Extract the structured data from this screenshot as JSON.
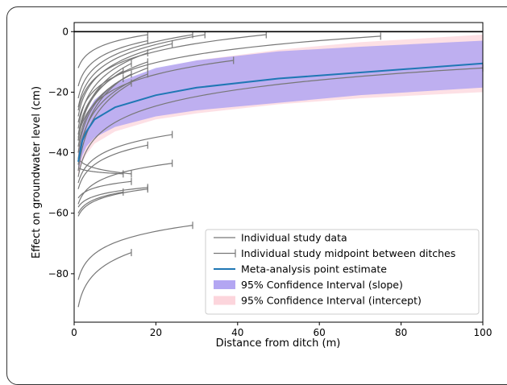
{
  "chart_data": {
    "type": "line",
    "title": "",
    "xlabel": "Distance from ditch (m)",
    "ylabel": "Effect on groundwater level (cm)",
    "xlim": [
      0,
      100
    ],
    "ylim": [
      -96,
      3
    ],
    "x_ticks": [
      0,
      20,
      40,
      60,
      80,
      100
    ],
    "y_ticks": [
      0,
      -20,
      -40,
      -60,
      -80
    ],
    "grid": false,
    "legend_position": "lower-right",
    "legend": [
      {
        "label": "Individual study data",
        "kind": "line",
        "color": "#777777"
      },
      {
        "label": "Individual study midpoint between ditches",
        "kind": "errorbar",
        "color": "#777777"
      },
      {
        "label": "Meta-analysis point estimate",
        "kind": "line",
        "color": "#1f77b4"
      },
      {
        "label": "95% Confidence Interval (slope)",
        "kind": "patch",
        "color": "#b3a6f2"
      },
      {
        "label": "95% Confidence Interval (intercept)",
        "kind": "patch",
        "color": "#fcd5dc"
      }
    ],
    "reference_line_y": 0,
    "meta_estimate": {
      "x": [
        1,
        2,
        3,
        5,
        10,
        20,
        30,
        50,
        70,
        100
      ],
      "y": [
        -43,
        -36,
        -33,
        -29,
        -25,
        -21,
        -18.5,
        -15.5,
        -13.5,
        -10.5
      ]
    },
    "ci_slope": {
      "x": [
        1,
        2,
        3,
        5,
        10,
        20,
        30,
        50,
        70,
        100
      ],
      "upper": [
        -40,
        -31,
        -27,
        -22.5,
        -17,
        -12,
        -9.5,
        -6.5,
        -5,
        -3
      ],
      "lower": [
        -46,
        -41,
        -38,
        -35,
        -31.5,
        -28,
        -26,
        -23.5,
        -21,
        -18.5
      ]
    },
    "ci_intercept": {
      "x": [
        1,
        2,
        3,
        5,
        10,
        20,
        30,
        50,
        70,
        100
      ],
      "upper": [
        -38,
        -31,
        -27,
        -23,
        -17.5,
        -12.5,
        -9.5,
        -6,
        -3.5,
        -1
      ],
      "lower": [
        -48,
        -43,
        -40.5,
        -37,
        -33,
        -29,
        -27,
        -24,
        -22,
        -20
      ]
    },
    "studies": [
      {
        "y1": -12,
        "x_end": 18,
        "y_end": -1
      },
      {
        "y1": -18,
        "x_end": 18,
        "y_end": -3
      },
      {
        "y1": -22,
        "x_end": 29,
        "y_end": -1
      },
      {
        "y1": -25,
        "x_end": 32,
        "y_end": -1
      },
      {
        "y1": -26,
        "x_end": 47,
        "y_end": -1
      },
      {
        "y1": -30,
        "x_end": 75,
        "y_end": -1.5
      },
      {
        "y1": -28,
        "x_end": 24,
        "y_end": -4
      },
      {
        "y1": -32,
        "x_end": 18,
        "y_end": -7
      },
      {
        "y1": -35,
        "x_end": 39,
        "y_end": -9.5
      },
      {
        "y1": -34,
        "x_end": 18,
        "y_end": -10
      },
      {
        "y1": -36,
        "x_end": 14,
        "y_end": -10.5
      },
      {
        "y1": -38,
        "x_end": 18,
        "y_end": -12
      },
      {
        "y1": -36,
        "x_end": 12,
        "y_end": -13
      },
      {
        "y1": -40,
        "x_end": 14,
        "y_end": -14
      },
      {
        "y1": -42,
        "x_end": 18,
        "y_end": -14
      },
      {
        "y1": -44,
        "x_end": 12,
        "y_end": -15.5
      },
      {
        "y1": -46,
        "x_end": 14,
        "y_end": -17
      },
      {
        "y1": -48,
        "x_end": 100,
        "y_end": -12
      },
      {
        "y1": -50,
        "x_end": 24,
        "y_end": -34
      },
      {
        "y1": -52,
        "x_end": 18,
        "y_end": -37.5
      },
      {
        "y1": -42,
        "x_end": 14,
        "y_end": -47
      },
      {
        "y1": -45,
        "x_end": 12,
        "y_end": -47
      },
      {
        "y1": -55,
        "x_end": 14,
        "y_end": -49.5
      },
      {
        "y1": -57,
        "x_end": 24,
        "y_end": -43.5
      },
      {
        "y1": -58,
        "x_end": 18,
        "y_end": -51.5
      },
      {
        "y1": -61,
        "x_end": 18,
        "y_end": -52
      },
      {
        "y1": -60,
        "x_end": 12,
        "y_end": -53
      },
      {
        "y1": -82,
        "x_end": 29,
        "y_end": -64
      },
      {
        "y1": -91,
        "x_end": 14,
        "y_end": -73
      }
    ]
  }
}
